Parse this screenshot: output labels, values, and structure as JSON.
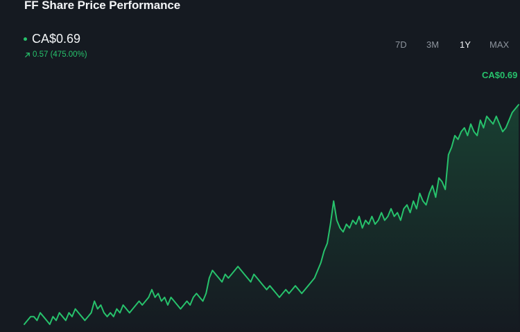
{
  "header": {
    "title": "FF Share Price Performance"
  },
  "price": {
    "current": "CA$0.69",
    "change": "0.57 (475.00%)",
    "change_direction": "up"
  },
  "range_tabs": [
    {
      "label": "7D",
      "active": false
    },
    {
      "label": "3M",
      "active": false
    },
    {
      "label": "1Y",
      "active": true
    },
    {
      "label": "MAX",
      "active": false
    }
  ],
  "colors": {
    "background": "#151a21",
    "positive": "#27c26c",
    "inactive_tab": "#8d949d",
    "text": "#f2f4f6"
  },
  "chart_data": {
    "type": "area",
    "title": "",
    "xlabel": "",
    "ylabel": "",
    "last_value_label": "CA$0.69",
    "ylim": [
      0.1,
      0.75
    ],
    "grid": false,
    "series": [
      {
        "values": [
          0.12,
          0.13,
          0.14,
          0.14,
          0.13,
          0.15,
          0.14,
          0.13,
          0.12,
          0.14,
          0.13,
          0.15,
          0.14,
          0.13,
          0.15,
          0.14,
          0.16,
          0.15,
          0.14,
          0.13,
          0.14,
          0.15,
          0.18,
          0.16,
          0.17,
          0.15,
          0.14,
          0.15,
          0.14,
          0.16,
          0.15,
          0.17,
          0.16,
          0.15,
          0.16,
          0.17,
          0.18,
          0.17,
          0.18,
          0.19,
          0.21,
          0.19,
          0.2,
          0.18,
          0.19,
          0.17,
          0.19,
          0.18,
          0.17,
          0.16,
          0.17,
          0.18,
          0.17,
          0.19,
          0.2,
          0.19,
          0.18,
          0.2,
          0.24,
          0.26,
          0.25,
          0.24,
          0.23,
          0.25,
          0.24,
          0.25,
          0.26,
          0.27,
          0.26,
          0.25,
          0.24,
          0.23,
          0.25,
          0.24,
          0.23,
          0.22,
          0.21,
          0.22,
          0.21,
          0.2,
          0.19,
          0.2,
          0.21,
          0.2,
          0.21,
          0.22,
          0.21,
          0.2,
          0.21,
          0.22,
          0.23,
          0.24,
          0.26,
          0.28,
          0.31,
          0.33,
          0.38,
          0.44,
          0.39,
          0.37,
          0.36,
          0.38,
          0.37,
          0.39,
          0.38,
          0.4,
          0.37,
          0.39,
          0.38,
          0.4,
          0.38,
          0.39,
          0.41,
          0.39,
          0.4,
          0.42,
          0.4,
          0.41,
          0.39,
          0.42,
          0.43,
          0.41,
          0.44,
          0.42,
          0.46,
          0.44,
          0.43,
          0.46,
          0.48,
          0.45,
          0.5,
          0.49,
          0.47,
          0.56,
          0.58,
          0.61,
          0.6,
          0.62,
          0.63,
          0.61,
          0.64,
          0.62,
          0.61,
          0.65,
          0.63,
          0.66,
          0.65,
          0.64,
          0.66,
          0.64,
          0.62,
          0.63,
          0.65,
          0.67,
          0.68,
          0.69
        ]
      }
    ]
  }
}
